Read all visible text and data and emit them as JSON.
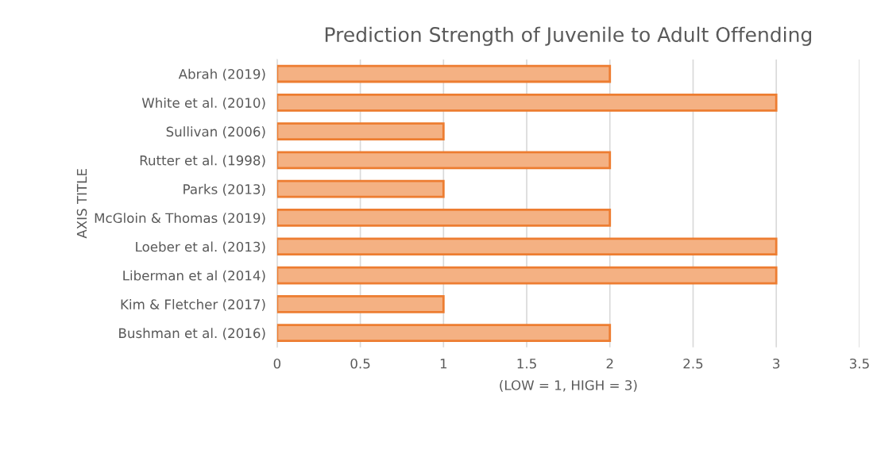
{
  "chart_data": {
    "type": "bar",
    "orientation": "horizontal",
    "title": "Prediction Strength of Juvenile to Adult Offending",
    "xlabel": "(LOW = 1, HIGH = 3)",
    "ylabel": "AXIS TITLE",
    "categories": [
      "Abrah (2019)",
      "White et al. (2010)",
      "Sullivan (2006)",
      "Rutter et al. (1998)",
      "Parks (2013)",
      "McGloin & Thomas (2019)",
      "Loeber et al. (2013)",
      "Liberman et al (2014)",
      "Kim & Fletcher (2017)",
      "Bushman et al. (2016)"
    ],
    "values": [
      2,
      3,
      1,
      2,
      1,
      2,
      3,
      3,
      1,
      2
    ],
    "color": "#f4b183",
    "xlim": [
      0,
      3.5
    ],
    "xticks": [
      0,
      0.5,
      1,
      1.5,
      2,
      2.5,
      3,
      3.5
    ],
    "grid": "x",
    "legend": false
  }
}
